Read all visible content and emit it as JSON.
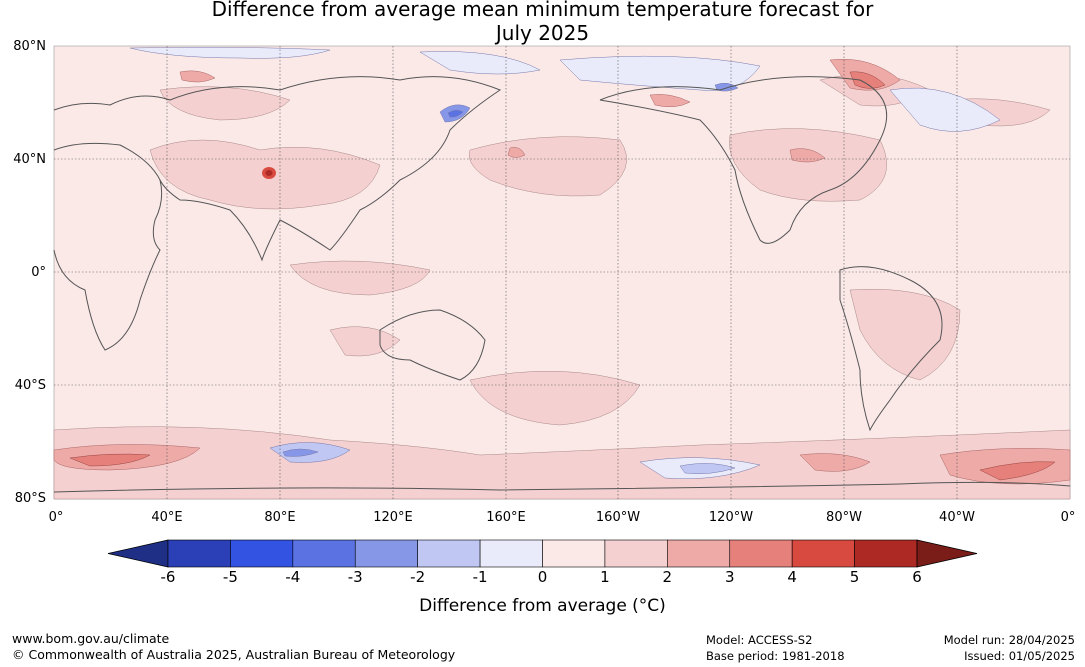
{
  "title_line1": "Difference from average mean minimum temperature forecast for",
  "title_line2": "July 2025",
  "lat_labels": [
    "80°N",
    "40°N",
    "0°",
    "40°S",
    "80°S"
  ],
  "lon_labels": [
    "0°",
    "40°E",
    "80°E",
    "120°E",
    "160°E",
    "160°W",
    "120°W",
    "80°W",
    "40°W",
    "0°"
  ],
  "colorbar": {
    "ticks": [
      "-6",
      "-5",
      "-4",
      "-3",
      "-2",
      "-1",
      "0",
      "1",
      "2",
      "3",
      "4",
      "5",
      "6"
    ],
    "colors": [
      "#1f2f86",
      "#2b40b7",
      "#3353e3",
      "#5a72e2",
      "#8797e8",
      "#bfc7f2",
      "#e9ebfa",
      "#fbe9e8",
      "#f4d0d0",
      "#edaaa7",
      "#e6807a",
      "#d84a40",
      "#ad2a24",
      "#7a1c18"
    ],
    "label": "Difference from average (°C)"
  },
  "footer": {
    "website": "www.bom.gov.au/climate",
    "copyright": "© Commonwealth of Australia 2025, Australian Bureau of Meteorology",
    "model": "Model: ACCESS-S2",
    "base_period": "Base period: 1981-2018",
    "model_run": "Model run: 28/04/2025",
    "issued": "Issued: 01/05/2025"
  }
}
